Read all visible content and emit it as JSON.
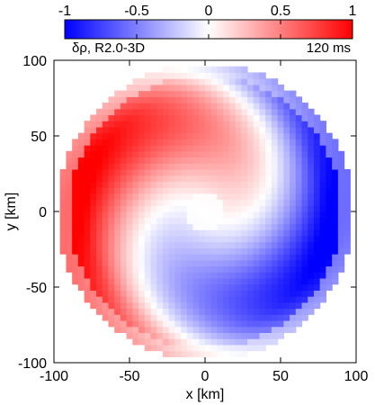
{
  "chart_data": {
    "type": "heatmap",
    "title": "",
    "xlabel": "x [km]",
    "ylabel": "y [km]",
    "xlim": [
      -100,
      100
    ],
    "ylim": [
      -100,
      100
    ],
    "x_ticks": [
      -100,
      -50,
      0,
      50,
      100
    ],
    "y_ticks": [
      -100,
      -50,
      0,
      50,
      100
    ],
    "colorbar": {
      "range": [
        -1,
        1
      ],
      "ticks": [
        -1,
        -0.5,
        0,
        0.5,
        1
      ],
      "colors": {
        "low": "#0000ff",
        "mid": "#ffffff",
        "high": "#ff0000"
      },
      "left_annotation": "δρ, R2.0-3D",
      "right_annotation": "120 ms"
    },
    "field": {
      "shape": "disk",
      "disk_radius": 98,
      "pattern": "two-arm spiral (m=1 dominant), blue lobe upper-right, red lobe lower-left, white core near origin"
    }
  }
}
